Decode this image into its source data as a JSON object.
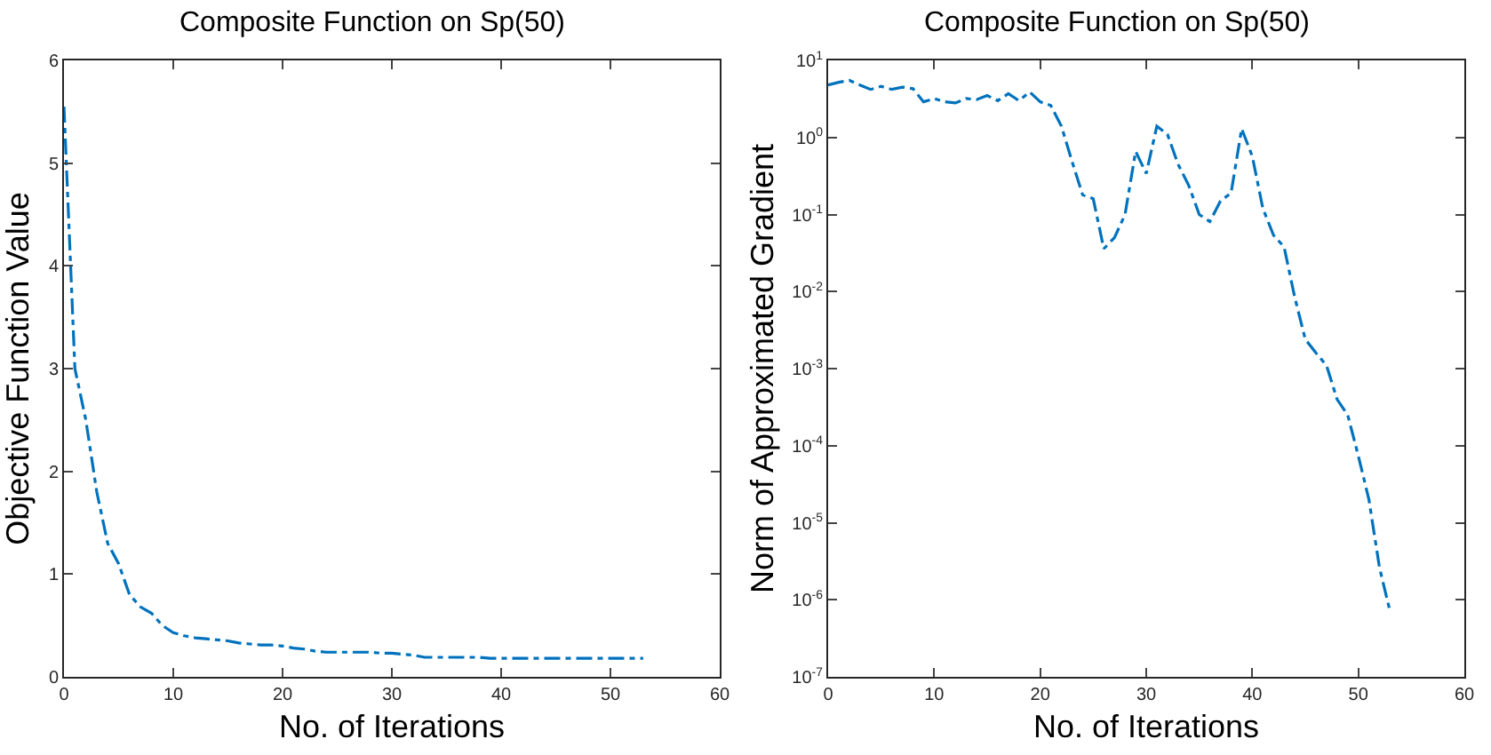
{
  "chart_data": [
    {
      "type": "line",
      "title": "Composite Function on Sp(50)",
      "xlabel": "No. of Iterations",
      "ylabel": "Objective Function Value",
      "x": [
        0,
        1,
        2,
        3,
        4,
        5,
        6,
        7,
        8,
        9,
        10,
        11,
        12,
        13,
        14,
        15,
        16,
        17,
        18,
        19,
        20,
        21,
        22,
        23,
        24,
        25,
        26,
        27,
        28,
        29,
        30,
        31,
        32,
        33,
        34,
        35,
        36,
        37,
        38,
        39,
        40,
        41,
        42,
        43,
        44,
        45,
        46,
        47,
        48,
        49,
        50,
        51,
        52,
        53
      ],
      "series": [
        {
          "color": "#0072bd",
          "values": [
            5.55,
            3.0,
            2.5,
            1.8,
            1.3,
            1.1,
            0.8,
            0.68,
            0.62,
            0.5,
            0.43,
            0.4,
            0.38,
            0.37,
            0.36,
            0.35,
            0.33,
            0.32,
            0.31,
            0.31,
            0.3,
            0.28,
            0.27,
            0.25,
            0.24,
            0.24,
            0.24,
            0.24,
            0.24,
            0.23,
            0.23,
            0.22,
            0.21,
            0.19,
            0.19,
            0.19,
            0.19,
            0.19,
            0.19,
            0.18,
            0.18,
            0.18,
            0.18,
            0.18,
            0.18,
            0.18,
            0.18,
            0.18,
            0.18,
            0.18,
            0.18,
            0.18,
            0.18,
            0.18
          ]
        }
      ],
      "xlim": [
        0,
        60
      ],
      "xticks": [
        0,
        10,
        20,
        30,
        40,
        50,
        60
      ],
      "ylim": [
        0,
        6
      ],
      "yticks": [
        0,
        1,
        2,
        3,
        4,
        5,
        6
      ],
      "grid": false,
      "marker": "none",
      "line_style": "dashed"
    },
    {
      "type": "line",
      "title": "Composite Function on Sp(50)",
      "xlabel": "No. of Iterations",
      "ylabel": "Norm of Approximated Gradient",
      "log": "y",
      "x": [
        0,
        1,
        2,
        3,
        4,
        5,
        6,
        7,
        8,
        9,
        10,
        11,
        12,
        13,
        14,
        15,
        16,
        17,
        18,
        19,
        20,
        21,
        22,
        23,
        24,
        25,
        26,
        27,
        28,
        29,
        30,
        31,
        32,
        33,
        34,
        35,
        36,
        37,
        38,
        39,
        40,
        41,
        42,
        43,
        44,
        45,
        46,
        47,
        48,
        49,
        50,
        51,
        52,
        53
      ],
      "series": [
        {
          "color": "#0072bd",
          "values": [
            4.8,
            5.2,
            5.5,
            4.8,
            4.2,
            4.6,
            4.2,
            4.5,
            4.3,
            2.9,
            3.2,
            2.9,
            2.8,
            3.2,
            3.1,
            3.5,
            3.0,
            3.7,
            3.0,
            3.9,
            2.9,
            2.6,
            1.4,
            0.49,
            0.18,
            0.16,
            0.036,
            0.05,
            0.1,
            0.66,
            0.34,
            1.4,
            1.1,
            0.45,
            0.24,
            0.1,
            0.081,
            0.15,
            0.19,
            1.3,
            0.57,
            0.12,
            0.054,
            0.038,
            0.0085,
            0.0024,
            0.0016,
            0.0011,
            0.0004,
            0.00025,
            7.4e-05,
            2e-05,
            2.6e-06,
            7e-07
          ]
        }
      ],
      "xlim": [
        0,
        60
      ],
      "xticks": [
        0,
        10,
        20,
        30,
        40,
        50,
        60
      ],
      "ylim": [
        1e-07,
        10
      ],
      "yticks": [
        {
          "value": 1e-07,
          "label": "10$^{-7}$"
        },
        {
          "value": 1e-06,
          "label": "10$^{-6}$"
        },
        {
          "value": 1e-05,
          "label": "10$^{-5}$"
        },
        {
          "value": 0.0001,
          "label": "10$^{-4}$"
        },
        {
          "value": 0.001,
          "label": "10$^{-3}$"
        },
        {
          "value": 0.01,
          "label": "10$^{-2}$"
        },
        {
          "value": 0.1,
          "label": "10$^{-1}$"
        },
        {
          "value": 1,
          "label": "10$^{0}$"
        },
        {
          "value": 10,
          "label": "10$^{1}$"
        }
      ],
      "grid": false,
      "marker": "none",
      "line_style": "dashed"
    }
  ]
}
